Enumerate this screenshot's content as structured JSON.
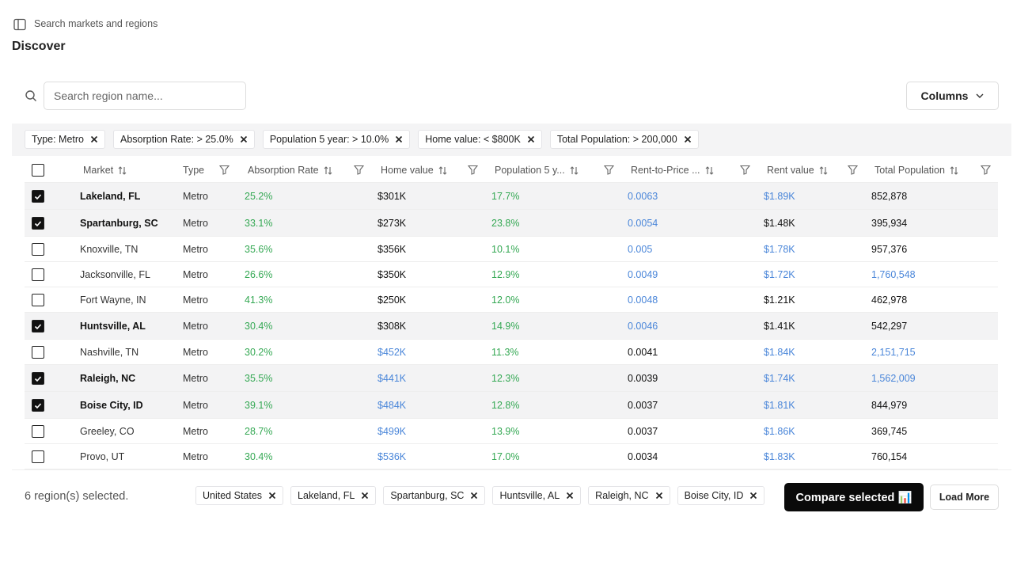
{
  "header": {
    "search_placeholder": "Search markets and regions",
    "title": "Discover"
  },
  "toolbar": {
    "search_placeholder": "Search region name...",
    "columns_button": "Columns"
  },
  "filters": [
    "Type: Metro",
    "Absorption Rate: > 25.0%",
    "Population 5 year: > 10.0%",
    "Home value: < $800K",
    "Total Population: > 200,000"
  ],
  "table": {
    "columns": [
      {
        "label": "Market",
        "sortable": true,
        "filterable": false
      },
      {
        "label": "Type",
        "sortable": false,
        "filterable": true
      },
      {
        "label": "Absorption Rate",
        "sortable": true,
        "filterable": true
      },
      {
        "label": "Home value",
        "sortable": true,
        "filterable": true
      },
      {
        "label": "Population 5 y...",
        "sortable": true,
        "filterable": true
      },
      {
        "label": "Rent-to-Price ...",
        "sortable": true,
        "filterable": true
      },
      {
        "label": "Rent value",
        "sortable": true,
        "filterable": true
      },
      {
        "label": "Total Population",
        "sortable": true,
        "filterable": true
      }
    ],
    "rows": [
      {
        "selected": true,
        "cells": [
          "Lakeland, FL",
          "Metro",
          "25.2%",
          "$301K",
          "17.7%",
          "0.0063",
          "$1.89K",
          "852,878"
        ],
        "colors": [
          "#111",
          "#333",
          "#34a853",
          "#111",
          "#34a853",
          "#4a86d9",
          "#4a86d9",
          "#111"
        ]
      },
      {
        "selected": true,
        "cells": [
          "Spartanburg, SC",
          "Metro",
          "33.1%",
          "$273K",
          "23.8%",
          "0.0054",
          "$1.48K",
          "395,934"
        ],
        "colors": [
          "#111",
          "#333",
          "#34a853",
          "#111",
          "#34a853",
          "#4a86d9",
          "#111",
          "#111"
        ]
      },
      {
        "selected": false,
        "cells": [
          "Knoxville, TN",
          "Metro",
          "35.6%",
          "$356K",
          "10.1%",
          "0.005",
          "$1.78K",
          "957,376"
        ],
        "colors": [
          "#333",
          "#333",
          "#34a853",
          "#111",
          "#34a853",
          "#4a86d9",
          "#4a86d9",
          "#111"
        ]
      },
      {
        "selected": false,
        "cells": [
          "Jacksonville, FL",
          "Metro",
          "26.6%",
          "$350K",
          "12.9%",
          "0.0049",
          "$1.72K",
          "1,760,548"
        ],
        "colors": [
          "#333",
          "#333",
          "#34a853",
          "#111",
          "#34a853",
          "#4a86d9",
          "#4a86d9",
          "#4a86d9"
        ]
      },
      {
        "selected": false,
        "cells": [
          "Fort Wayne, IN",
          "Metro",
          "41.3%",
          "$250K",
          "12.0%",
          "0.0048",
          "$1.21K",
          "462,978"
        ],
        "colors": [
          "#333",
          "#333",
          "#34a853",
          "#111",
          "#34a853",
          "#4a86d9",
          "#111",
          "#111"
        ]
      },
      {
        "selected": true,
        "cells": [
          "Huntsville, AL",
          "Metro",
          "30.4%",
          "$308K",
          "14.9%",
          "0.0046",
          "$1.41K",
          "542,297"
        ],
        "colors": [
          "#111",
          "#333",
          "#34a853",
          "#111",
          "#34a853",
          "#4a86d9",
          "#111",
          "#111"
        ]
      },
      {
        "selected": false,
        "cells": [
          "Nashville, TN",
          "Metro",
          "30.2%",
          "$452K",
          "11.3%",
          "0.0041",
          "$1.84K",
          "2,151,715"
        ],
        "colors": [
          "#333",
          "#333",
          "#34a853",
          "#4a86d9",
          "#34a853",
          "#111",
          "#4a86d9",
          "#4a86d9"
        ]
      },
      {
        "selected": true,
        "cells": [
          "Raleigh, NC",
          "Metro",
          "35.5%",
          "$441K",
          "12.3%",
          "0.0039",
          "$1.74K",
          "1,562,009"
        ],
        "colors": [
          "#111",
          "#333",
          "#34a853",
          "#4a86d9",
          "#34a853",
          "#111",
          "#4a86d9",
          "#4a86d9"
        ]
      },
      {
        "selected": true,
        "cells": [
          "Boise City, ID",
          "Metro",
          "39.1%",
          "$484K",
          "12.8%",
          "0.0037",
          "$1.81K",
          "844,979"
        ],
        "colors": [
          "#111",
          "#333",
          "#34a853",
          "#4a86d9",
          "#34a853",
          "#111",
          "#4a86d9",
          "#111"
        ]
      },
      {
        "selected": false,
        "cells": [
          "Greeley, CO",
          "Metro",
          "28.7%",
          "$499K",
          "13.9%",
          "0.0037",
          "$1.86K",
          "369,745"
        ],
        "colors": [
          "#333",
          "#333",
          "#34a853",
          "#4a86d9",
          "#34a853",
          "#111",
          "#4a86d9",
          "#111"
        ]
      },
      {
        "selected": false,
        "cells": [
          "Provo, UT",
          "Metro",
          "30.4%",
          "$536K",
          "17.0%",
          "0.0034",
          "$1.83K",
          "760,154"
        ],
        "colors": [
          "#333",
          "#333",
          "#34a853",
          "#4a86d9",
          "#34a853",
          "#111",
          "#4a86d9",
          "#111"
        ]
      }
    ]
  },
  "footer": {
    "selection_summary": "6 region(s) selected.",
    "selected_chips": [
      "United States",
      "Lakeland, FL",
      "Spartanburg, SC",
      "Huntsville, AL",
      "Raleigh, NC",
      "Boise City, ID"
    ],
    "compare_button": "Compare selected 📊",
    "load_more_button": "Load More"
  }
}
